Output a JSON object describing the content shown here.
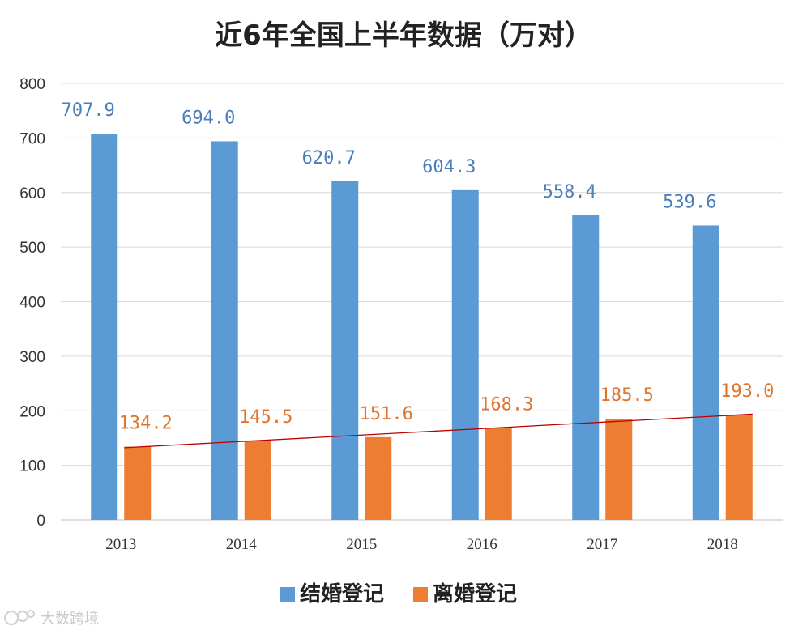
{
  "chart_data": {
    "type": "bar",
    "title": "近6年全国上半年数据（万对）",
    "categories": [
      "2013",
      "2014",
      "2015",
      "2016",
      "2017",
      "2018"
    ],
    "series": [
      {
        "name": "结婚登记",
        "values": [
          707.9,
          694.0,
          620.7,
          604.3,
          558.4,
          539.6
        ],
        "labels": [
          "707.9",
          "694.0",
          "620.7",
          "604.3",
          "558.4",
          "539.6"
        ],
        "color": "#5b9bd5",
        "label_color": "#4a7ebb"
      },
      {
        "name": "离婚登记",
        "values": [
          134.2,
          145.5,
          151.6,
          168.3,
          185.5,
          193.0
        ],
        "labels": [
          "134.2",
          "145.5",
          "151.6",
          "168.3",
          "185.5",
          "193.0"
        ],
        "color": "#ed7d31",
        "label_color": "#e0752d"
      }
    ],
    "trendline": {
      "series": "离婚登记",
      "type": "linear",
      "color": "#c00000"
    },
    "ylim": [
      0,
      800
    ],
    "yticks": [
      0,
      100,
      200,
      300,
      400,
      500,
      600,
      700,
      800
    ],
    "xlabel": "",
    "ylabel": "",
    "grid": true,
    "legend_position": "bottom"
  },
  "watermark": {
    "text": "大数跨境",
    "icon": "brand-logo-icon"
  }
}
